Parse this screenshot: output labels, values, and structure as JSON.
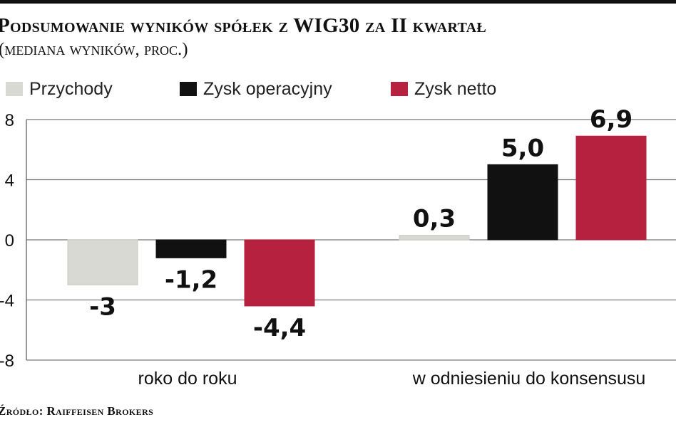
{
  "title": "Podsumowanie wyników spółek z WIG30 za II kwartał",
  "subtitle": "(mediana wyników, proc.)",
  "source": "Źródło: Raiffeisen Brokers",
  "chart_data": {
    "type": "bar",
    "categories": [
      "roko do roku",
      "w odniesieniu do konsensusu"
    ],
    "series": [
      {
        "name": "Przychody",
        "values": [
          -3,
          0.3
        ],
        "labels": [
          "-3",
          "0,3"
        ],
        "color": "#d9d9d3"
      },
      {
        "name": "Zysk operacyjny",
        "values": [
          -1.2,
          5.0
        ],
        "labels": [
          "-1,2",
          "5,0"
        ],
        "color": "#111111"
      },
      {
        "name": "Zysk netto",
        "values": [
          -4.4,
          6.9
        ],
        "labels": [
          "-4,4",
          "6,9"
        ],
        "color": "#b5213e"
      }
    ],
    "yticks": [
      8,
      4,
      0,
      -4,
      -8
    ],
    "ytick_labels": [
      "8",
      "4",
      "0",
      "-4",
      "-8"
    ],
    "ylim": [
      -8,
      8
    ],
    "grid": true,
    "legend": "top-left"
  }
}
